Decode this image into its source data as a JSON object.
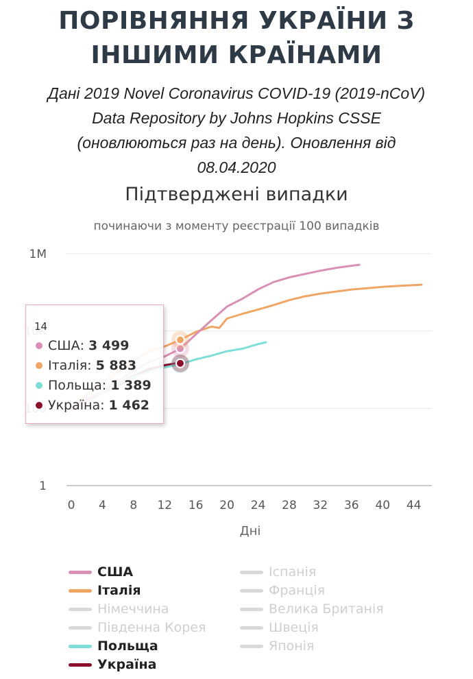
{
  "header": {
    "title_line1": "ПОРІВНЯННЯ УКРАЇНИ З",
    "title_line2": "ІНШИМИ КРАЇНАМИ",
    "subtitle_line1": "Дані 2019 Novel Coronavirus COVID-19 (2019-nCoV)",
    "subtitle_line2": "Data Repository by Johns Hopkins CSSE",
    "subtitle_line3": "(оновлюються раз на день). Оновлення від",
    "subtitle_line4": "08.04.2020"
  },
  "chart_data": {
    "type": "line",
    "title": "Підтверджені випадки",
    "subtitle": "починаючи з моменту реєстрації 100 випадків",
    "xlabel": "Дні",
    "ylabel": "",
    "y_scale": "log",
    "xlim": [
      0,
      45
    ],
    "ylim": [
      1,
      1000000
    ],
    "x_ticks": [
      "0",
      "4",
      "8",
      "12",
      "16",
      "20",
      "24",
      "28",
      "32",
      "36",
      "40",
      "44"
    ],
    "y_ticks": [
      {
        "value": 1,
        "label": "1"
      },
      {
        "value": 100,
        "label": "100"
      },
      {
        "value": 10000,
        "label": "10K"
      },
      {
        "value": 1000000,
        "label": "1M"
      }
    ],
    "grid": true,
    "series": [
      {
        "name": "США",
        "color": "#d890b5",
        "x": [
          0,
          2,
          4,
          6,
          8,
          10,
          12,
          14,
          16,
          18,
          20,
          22,
          24,
          26,
          28,
          30,
          32,
          34,
          36,
          37
        ],
        "y": [
          100,
          160,
          290,
          520,
          900,
          1600,
          2200,
          3499,
          8200,
          19000,
          43000,
          69000,
          120000,
          186000,
          245000,
          300000,
          365000,
          430000,
          490000,
          520000
        ]
      },
      {
        "name": "Італія",
        "color": "#efa563",
        "x": [
          0,
          2,
          4,
          6,
          8,
          10,
          12,
          14,
          16,
          18,
          19,
          20,
          22,
          24,
          26,
          28,
          30,
          32,
          34,
          36,
          38,
          40,
          42,
          44,
          45
        ],
        "y": [
          100,
          230,
          450,
          900,
          1700,
          3000,
          4000,
          5883,
          9500,
          13000,
          12000,
          21000,
          28000,
          36000,
          47000,
          63000,
          79000,
          93000,
          105000,
          119000,
          128000,
          139000,
          147000,
          154000,
          158000
        ]
      },
      {
        "name": "Польща",
        "color": "#7dddd8",
        "x": [
          0,
          2,
          4,
          6,
          8,
          10,
          12,
          14,
          16,
          18,
          20,
          22,
          24,
          25
        ],
        "y": [
          100,
          160,
          250,
          430,
          640,
          900,
          1150,
          1389,
          1850,
          2300,
          3000,
          3500,
          4600,
          5100
        ]
      },
      {
        "name": "Україна",
        "color": "#8b0f2c",
        "x": [
          0,
          2,
          4,
          6,
          8,
          10,
          12,
          14
        ],
        "y": [
          100,
          160,
          260,
          420,
          650,
          1000,
          1250,
          1462
        ]
      },
      {
        "name": "Іспанія",
        "color": "#d9d9d9",
        "x": [],
        "y": []
      },
      {
        "name": "Німеччина",
        "color": "#d9d9d9",
        "x": [],
        "y": []
      },
      {
        "name": "Франція",
        "color": "#d9d9d9",
        "x": [],
        "y": []
      },
      {
        "name": "Південна Корея",
        "color": "#d9d9d9",
        "x": [],
        "y": []
      },
      {
        "name": "Велика Британія",
        "color": "#d9d9d9",
        "x": [],
        "y": []
      },
      {
        "name": "Швеція",
        "color": "#d9d9d9",
        "x": [],
        "y": []
      },
      {
        "name": "Японія",
        "color": "#d9d9d9",
        "x": [],
        "y": []
      }
    ],
    "tooltip": {
      "x": 14,
      "label": "14",
      "rows": [
        {
          "name": "США",
          "value": "3 499",
          "color": "#d890b5"
        },
        {
          "name": "Італія",
          "value": "5 883",
          "color": "#efa563"
        },
        {
          "name": "Польща",
          "value": "1 389",
          "color": "#7dddd8"
        },
        {
          "name": "Україна",
          "value": "1 462",
          "color": "#8b0f2c"
        }
      ]
    }
  },
  "legend": {
    "items": [
      {
        "label": "США",
        "color": "#d890b5",
        "active": true
      },
      {
        "label": "Іспанія",
        "color": "#d9d9d9",
        "active": false
      },
      {
        "label": "Італія",
        "color": "#efa563",
        "active": true
      },
      {
        "label": "Франція",
        "color": "#d9d9d9",
        "active": false
      },
      {
        "label": "Німеччина",
        "color": "#d9d9d9",
        "active": false
      },
      {
        "label": "Велика Британія",
        "color": "#d9d9d9",
        "active": false
      },
      {
        "label": "Південна Корея",
        "color": "#d9d9d9",
        "active": false
      },
      {
        "label": "Швеція",
        "color": "#d9d9d9",
        "active": false
      },
      {
        "label": "Польща",
        "color": "#7dddd8",
        "active": true
      },
      {
        "label": "Японія",
        "color": "#d9d9d9",
        "active": false
      },
      {
        "label": "Україна",
        "color": "#8b0f2c",
        "active": true
      }
    ]
  }
}
